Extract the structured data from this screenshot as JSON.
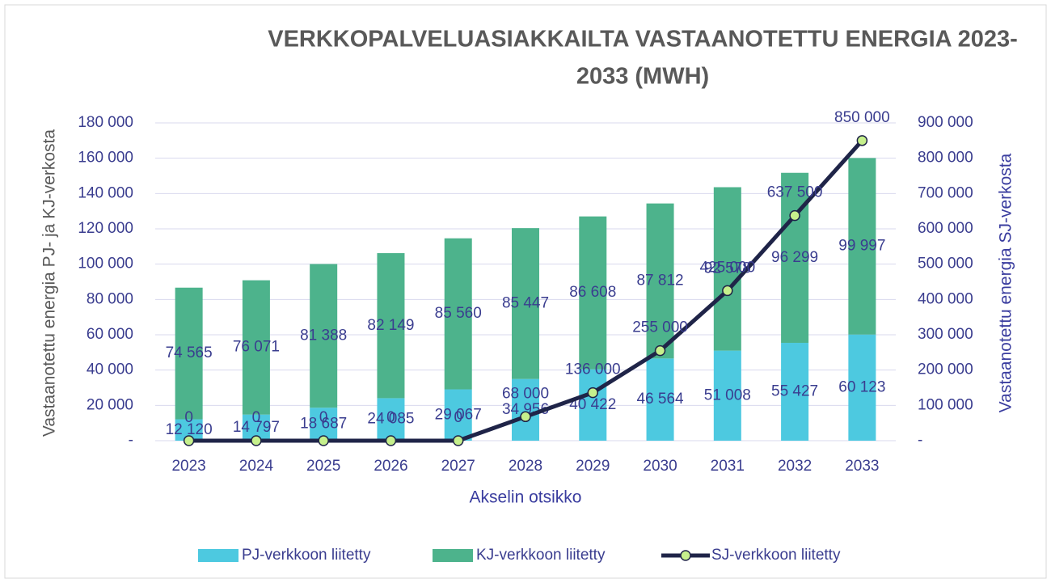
{
  "chart_data": {
    "type": "bar",
    "title": [
      "VERKKOPALVELUASIAKKAILTA VASTAANOTETTU ENERGIA 2023-",
      "2033 (MWH)"
    ],
    "x_label": "Akselin otsikko",
    "y_label": "Vastaanotettu energia PJ- ja KJ-verkosta",
    "y2_label": "Vastaanotettu energia SJ-verkosta",
    "categories": [
      "2023",
      "2024",
      "2025",
      "2026",
      "2027",
      "2028",
      "2029",
      "2030",
      "2031",
      "2032",
      "2033"
    ],
    "stacked": true,
    "grid": true,
    "legend": "bottom",
    "series": [
      {
        "name": "PJ-verkkoon liitetty",
        "type": "bar",
        "color": "#4dc9e0",
        "values": [
          12120,
          14797,
          18687,
          24085,
          29067,
          34956,
          40422,
          46564,
          51008,
          55427,
          60123
        ],
        "value_labels": [
          "12 120",
          "14 797",
          "18 687",
          "24 085",
          "29 067",
          "34 956",
          "40 422",
          "46 564",
          "51 008",
          "55 427",
          "60 123"
        ]
      },
      {
        "name": "KJ-verkkoon liitetty",
        "type": "bar",
        "color": "#4db38c",
        "values": [
          74565,
          76071,
          81388,
          82149,
          85560,
          85447,
          86608,
          87812,
          92578,
          96299,
          99997
        ],
        "value_labels": [
          "74 565",
          "76 071",
          "81 388",
          "82 149",
          "85 560",
          "85 447",
          "86 608",
          "87 812",
          "92 578",
          "96 299",
          "99 997"
        ]
      },
      {
        "name": "SJ-verkkoon liitetty",
        "type": "line",
        "axis": "y2",
        "color": "#1f2448",
        "marker_color": "#c6f08c",
        "values": [
          0,
          0,
          0,
          0,
          0,
          68000,
          136000,
          255000,
          425000,
          637500,
          850000
        ],
        "value_labels": [
          "0",
          "0",
          "0",
          "0",
          "0",
          "68 000",
          "136 000",
          "255 000",
          "425 000",
          "637 500",
          "850 000"
        ]
      }
    ],
    "ylim": [
      0,
      180000
    ],
    "yticks": [
      {
        "value": 0,
        "label": "-"
      },
      {
        "value": 20000,
        "label": "20 000"
      },
      {
        "value": 40000,
        "label": "40 000"
      },
      {
        "value": 60000,
        "label": "60 000"
      },
      {
        "value": 80000,
        "label": "80 000"
      },
      {
        "value": 100000,
        "label": "100 000"
      },
      {
        "value": 120000,
        "label": "120 000"
      },
      {
        "value": 140000,
        "label": "140 000"
      },
      {
        "value": 160000,
        "label": "160 000"
      },
      {
        "value": 180000,
        "label": "180 000"
      }
    ],
    "y2lim": [
      0,
      900000
    ],
    "y2ticks": [
      {
        "value": 0,
        "label": "-"
      },
      {
        "value": 100000,
        "label": "100 000"
      },
      {
        "value": 200000,
        "label": "200 000"
      },
      {
        "value": 300000,
        "label": "300 000"
      },
      {
        "value": 400000,
        "label": "400 000"
      },
      {
        "value": 500000,
        "label": "500 000"
      },
      {
        "value": 600000,
        "label": "600 000"
      },
      {
        "value": 700000,
        "label": "700 000"
      },
      {
        "value": 800000,
        "label": "800 000"
      },
      {
        "value": 900000,
        "label": "900 000"
      }
    ]
  }
}
